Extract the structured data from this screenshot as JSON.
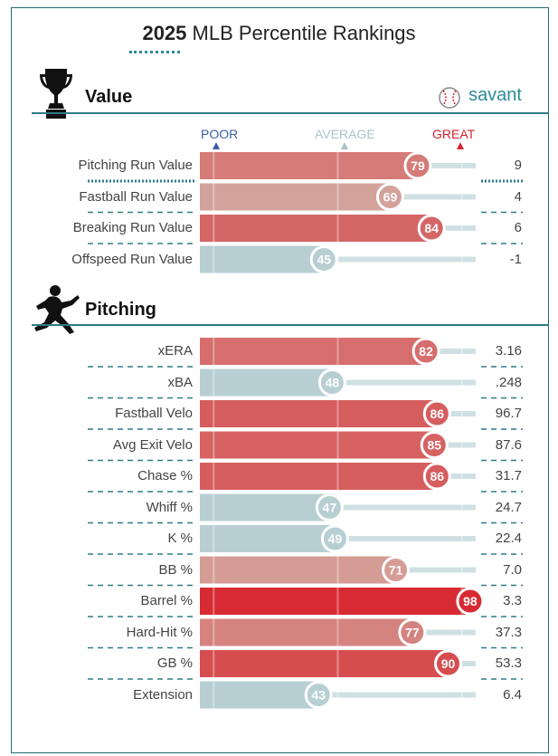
{
  "title": {
    "year": "2025",
    "rest": "MLB Percentile Rankings"
  },
  "brand": {
    "name": "savant"
  },
  "legend": {
    "poor": "POOR",
    "average": "AVERAGE",
    "great": "GREAT"
  },
  "colors": {
    "accent": "#2e7b85",
    "great_red": "#d7232c",
    "poor_blue": "#3a5da8",
    "average_gray": "#b7cfd3"
  },
  "sections": [
    {
      "title": "Value",
      "icon": "trophy-icon"
    },
    {
      "title": "Pitching",
      "icon": "pitcher-icon"
    }
  ],
  "chart_data": {
    "type": "bar",
    "x_range": [
      0,
      100
    ],
    "groups": [
      {
        "name": "Value",
        "metrics": [
          "Pitching Run Value",
          "Fastball Run Value",
          "Breaking Run Value",
          "Offspeed Run Value"
        ],
        "percentiles": [
          79,
          69,
          84,
          45
        ],
        "values": [
          "9",
          "4",
          "6",
          "-1"
        ]
      },
      {
        "name": "Pitching",
        "metrics": [
          "xERA",
          "xBA",
          "Fastball Velo",
          "Avg Exit Velo",
          "Chase %",
          "Whiff %",
          "K %",
          "BB %",
          "Barrel %",
          "Hard-Hit %",
          "GB %",
          "Extension"
        ],
        "percentiles": [
          82,
          48,
          86,
          85,
          86,
          47,
          49,
          71,
          98,
          77,
          90,
          43
        ],
        "values": [
          "3.16",
          ".248",
          "96.7",
          "87.6",
          "31.7",
          "24.7",
          "22.4",
          "7.0",
          "3.3",
          "37.3",
          "53.3",
          "6.4"
        ]
      }
    ]
  }
}
